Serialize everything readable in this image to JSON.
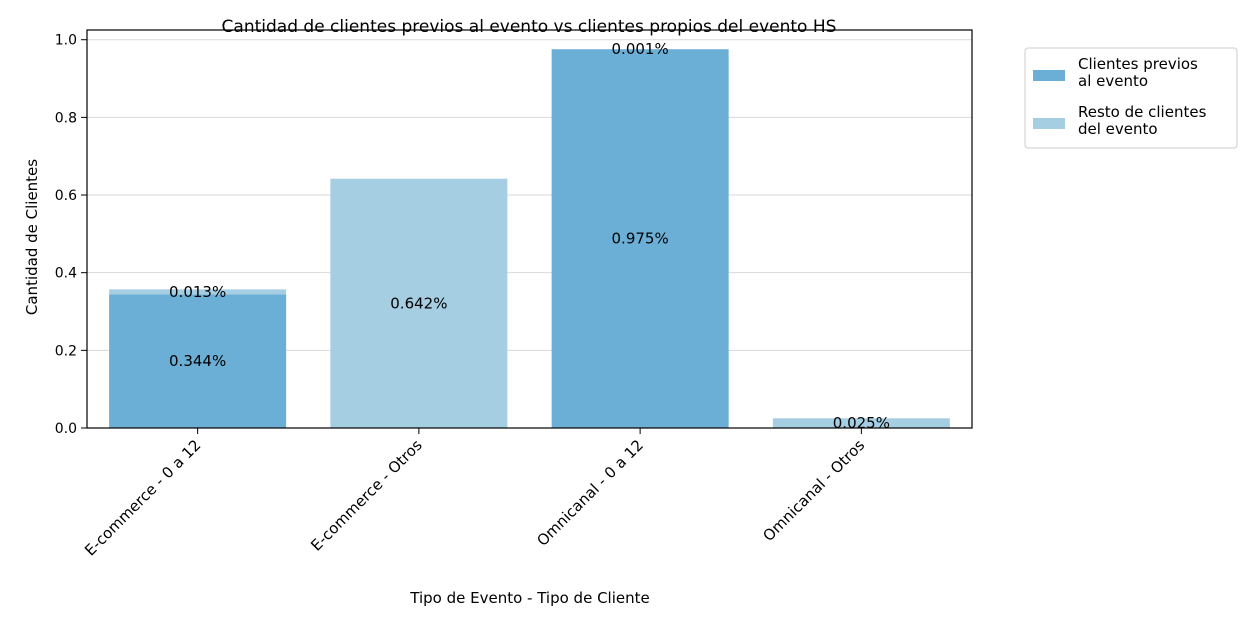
{
  "chart_data": {
    "type": "bar",
    "stacked": true,
    "title": "Cantidad de clientes previos al evento vs clientes propios del evento HS",
    "xlabel": "Tipo de Evento - Tipo de Cliente",
    "ylabel": "Cantidad de Clientes",
    "categories": [
      "E-commerce - 0 a 12",
      "E-commerce - Otros",
      "Omnicanal - 0 a 12",
      "Omnicanal - Otros"
    ],
    "series": [
      {
        "name": "Clientes previos\nal evento",
        "color": "#6baed6",
        "values": [
          0.344,
          0,
          0.975,
          0
        ],
        "labels": [
          "0.344%",
          "",
          "0.975%",
          ""
        ]
      },
      {
        "name": "Resto de clientes\ndel evento",
        "color": "#a6cee3",
        "values": [
          0.013,
          0.642,
          0.001,
          0.025
        ],
        "labels": [
          "0.013%",
          "0.642%",
          "0.001%",
          "0.025%"
        ]
      }
    ],
    "ylim": [
      0,
      1.025
    ],
    "yticks": [
      0.0,
      0.2,
      0.4,
      0.6,
      0.8,
      1.0
    ],
    "ytick_labels": [
      "0.0",
      "0.2",
      "0.4",
      "0.6",
      "0.8",
      "1.0"
    ],
    "grid": "y",
    "legend_position": "outside-right-top"
  }
}
